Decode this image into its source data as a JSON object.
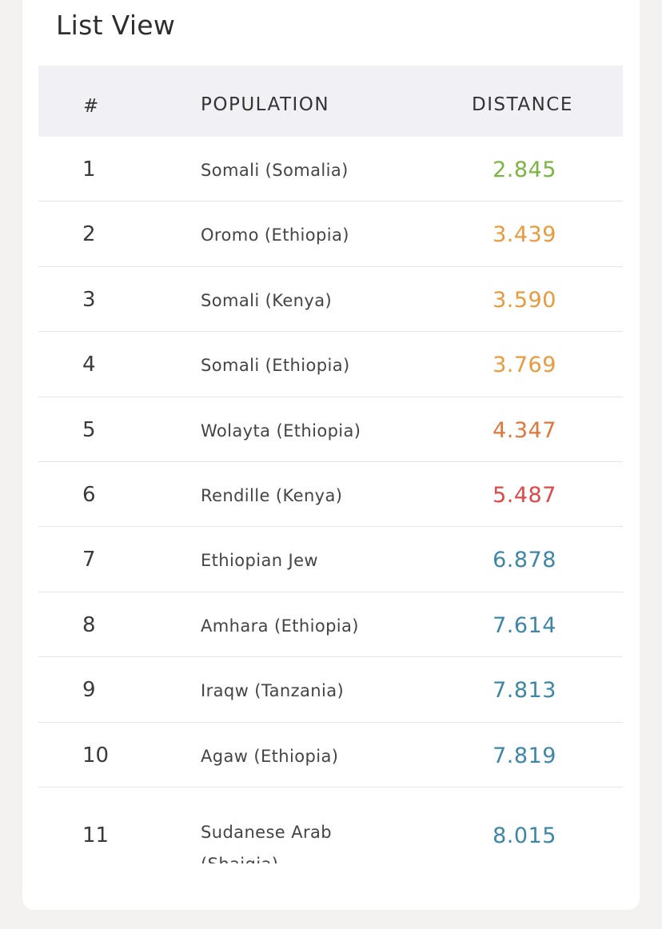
{
  "section": {
    "title": "List View"
  },
  "table": {
    "headers": {
      "num": "#",
      "population": "POPULATION",
      "distance": "DISTANCE"
    },
    "rows": [
      {
        "num": "1",
        "population": "Somali (Somalia)",
        "distance": "2.845",
        "color": "#7cb342"
      },
      {
        "num": "2",
        "population": "Oromo (Ethiopia)",
        "distance": "3.439",
        "color": "#e89a3c"
      },
      {
        "num": "3",
        "population": "Somali (Kenya)",
        "distance": "3.590",
        "color": "#e89a3c"
      },
      {
        "num": "4",
        "population": "Somali (Ethiopia)",
        "distance": "3.769",
        "color": "#e89a3c"
      },
      {
        "num": "5",
        "population": "Wolayta (Ethiopia)",
        "distance": "4.347",
        "color": "#e0763a"
      },
      {
        "num": "6",
        "population": "Rendille (Kenya)",
        "distance": "5.487",
        "color": "#e04848"
      },
      {
        "num": "7",
        "population": "Ethiopian Jew",
        "distance": "6.878",
        "color": "#3d87a5"
      },
      {
        "num": "8",
        "population": "Amhara (Ethiopia)",
        "distance": "7.614",
        "color": "#3d87a5"
      },
      {
        "num": "9",
        "population": "Iraqw (Tanzania)",
        "distance": "7.813",
        "color": "#3d87a5"
      },
      {
        "num": "10",
        "population": "Agaw (Ethiopia)",
        "distance": "7.819",
        "color": "#3d87a5"
      },
      {
        "num": "11",
        "population": "Sudanese Arab (Shaigia)",
        "distance": "8.015",
        "color": "#3d87a5"
      }
    ]
  }
}
